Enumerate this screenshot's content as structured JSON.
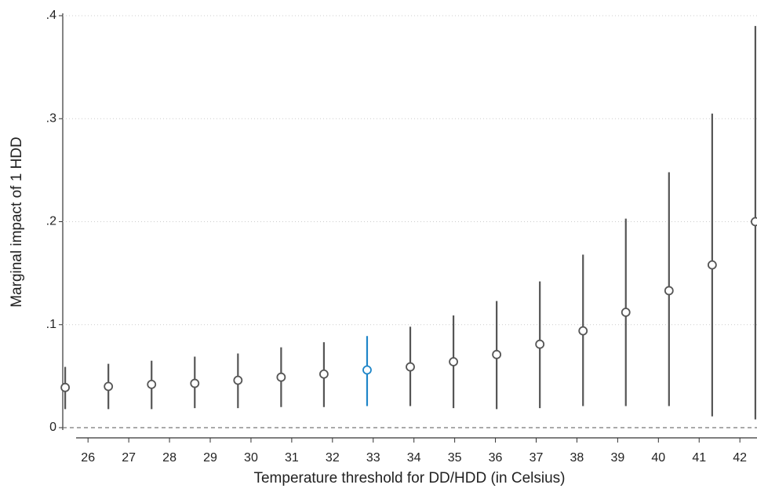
{
  "chart_data": {
    "type": "errorbar",
    "x_label": "Temperature threshold for DD/HDD (in Celsius)",
    "y_label": "Marginal impact of 1 HDD",
    "xlim": [
      25.38,
      42.42
    ],
    "xticks": [
      26,
      27,
      28,
      29,
      30,
      31,
      32,
      33,
      34,
      35,
      36,
      37,
      38,
      39,
      40,
      41,
      42
    ],
    "ylim": [
      0,
      0.4
    ],
    "yticks": [
      0,
      {
        "value": 0.1,
        "label": ".1"
      },
      {
        "value": 0.2,
        "label": ".2"
      },
      {
        "value": 0.3,
        "label": ".3"
      },
      {
        "value": 0.4,
        "label": ".4"
      }
    ],
    "grid": true,
    "reference_line": 0,
    "series": [
      {
        "x": [
          25.44,
          26.5,
          27.56,
          28.62,
          29.68,
          30.74,
          31.79,
          32.85,
          33.91,
          34.97,
          36.03,
          37.09,
          38.15,
          39.2,
          40.26,
          41.32,
          42.38
        ],
        "values": [
          0.039,
          0.04,
          0.042,
          0.043,
          0.046,
          0.049,
          0.052,
          0.056,
          0.059,
          0.064,
          0.071,
          0.081,
          0.094,
          0.112,
          0.133,
          0.158,
          0.2
        ],
        "upper": [
          0.059,
          0.062,
          0.065,
          0.069,
          0.072,
          0.078,
          0.083,
          0.089,
          0.098,
          0.109,
          0.123,
          0.142,
          0.168,
          0.203,
          0.248,
          0.305,
          0.39
        ],
        "lower": [
          0.018,
          0.018,
          0.018,
          0.019,
          0.019,
          0.02,
          0.02,
          0.021,
          0.021,
          0.019,
          0.018,
          0.019,
          0.021,
          0.021,
          0.021,
          0.011,
          0.008
        ],
        "colors": [
          "#555555",
          "#555555",
          "#555555",
          "#555555",
          "#555555",
          "#555555",
          "#555555",
          "#1f86c8",
          "#555555",
          "#555555",
          "#555555",
          "#555555",
          "#555555",
          "#555555",
          "#555555",
          "#555555",
          "#555555"
        ]
      }
    ]
  }
}
